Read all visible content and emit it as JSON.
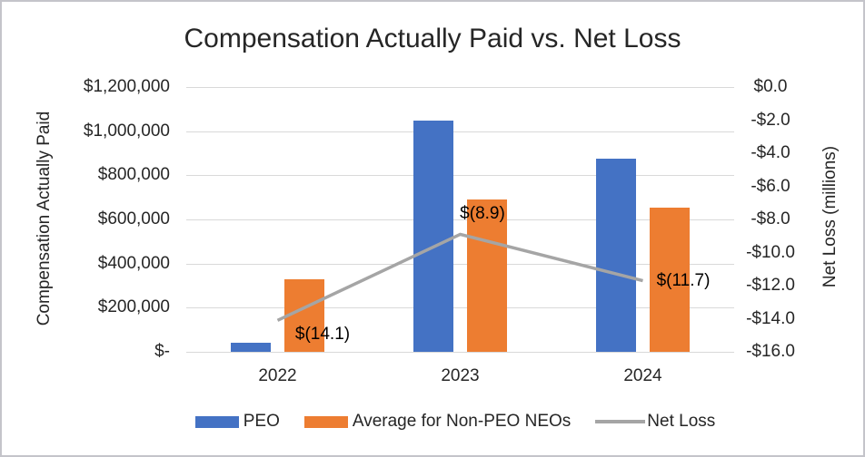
{
  "chart_data": {
    "type": "combo-bar-line",
    "title": "Compensation Actually Paid vs. Net Loss",
    "categories": [
      "2022",
      "2023",
      "2024"
    ],
    "series": [
      {
        "name": "PEO",
        "type": "bar",
        "axis": "left",
        "color": "#4472C4",
        "values": [
          40000,
          1050000,
          875000
        ]
      },
      {
        "name": "Average for Non-PEO NEOs",
        "type": "bar",
        "axis": "left",
        "color": "#ED7D31",
        "values": [
          330000,
          690000,
          655000
        ]
      },
      {
        "name": "Net Loss",
        "type": "line",
        "axis": "right",
        "color": "#A5A5A5",
        "values": [
          -14.1,
          -8.9,
          -11.7
        ],
        "point_labels": [
          "$(14.1)",
          "$(8.9)",
          "$(11.7)"
        ]
      }
    ],
    "left_axis": {
      "label": "Compensation Actually Paid",
      "min": 0,
      "max": 1200000,
      "step": 200000,
      "ticks": [
        "$1,200,000",
        "$1,000,000",
        "$800,000",
        "$600,000",
        "$400,000",
        "$200,000",
        "$-"
      ]
    },
    "right_axis": {
      "label": "Net Loss (millions)",
      "min": -16,
      "max": 0,
      "step": 2,
      "ticks": [
        "$0.0",
        "-$2.0",
        "-$4.0",
        "-$6.0",
        "-$8.0",
        "-$10.0",
        "-$12.0",
        "-$14.0",
        "-$16.0"
      ]
    },
    "legend": [
      {
        "label": "PEO",
        "color": "#4472C4",
        "marker": "bar"
      },
      {
        "label": "Average for Non-PEO NEOs",
        "color": "#ED7D31",
        "marker": "bar"
      },
      {
        "label": "Net Loss",
        "color": "#A5A5A5",
        "marker": "line"
      }
    ],
    "grid": {
      "on": true,
      "color": "#d9d9d9"
    },
    "colors": {
      "blue": "#4472C4",
      "orange": "#ED7D31",
      "gray_line": "#A5A5A5",
      "gridline": "#d9d9d9",
      "border": "#c4c4ca"
    }
  }
}
